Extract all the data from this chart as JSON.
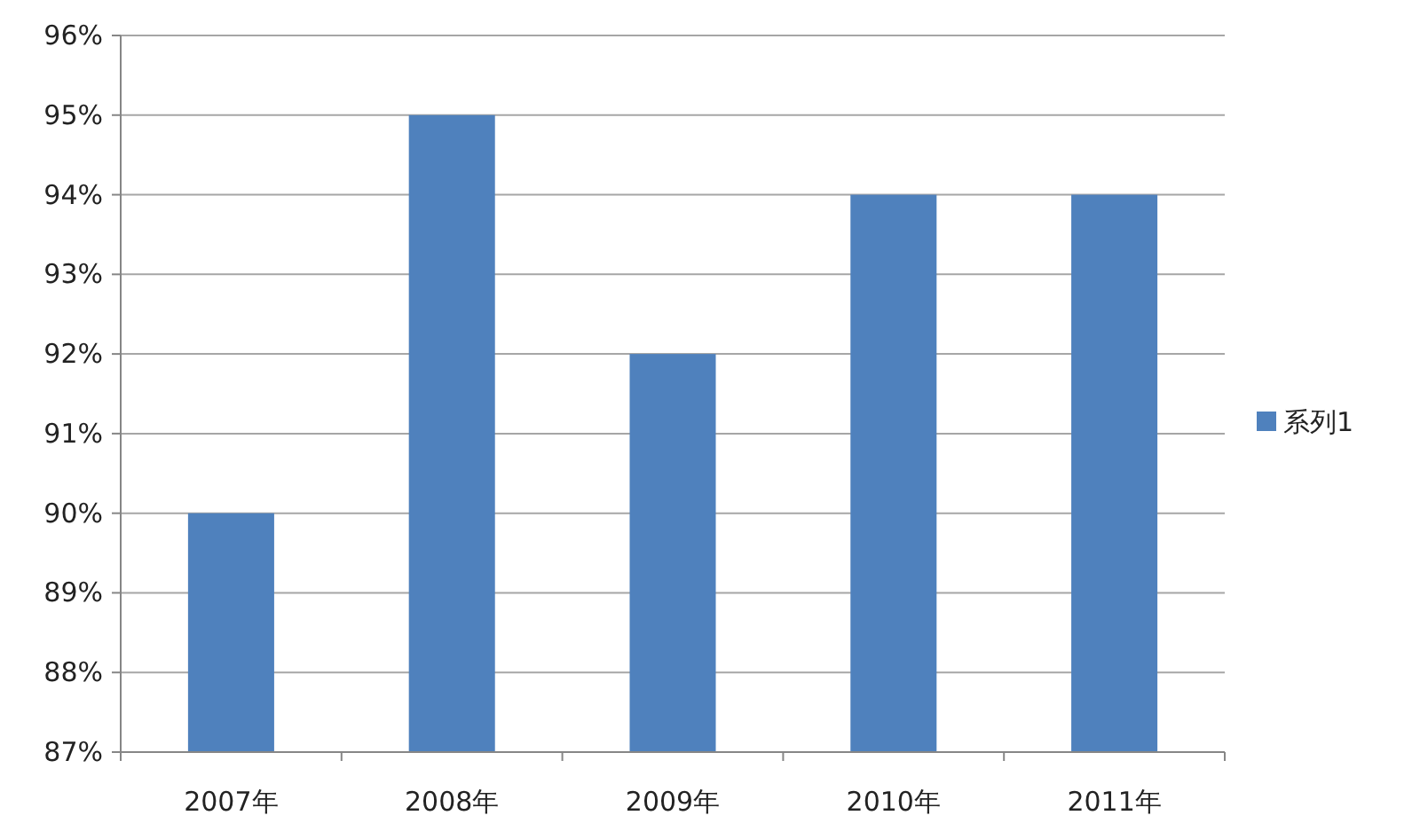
{
  "chart_data": {
    "type": "bar",
    "categories": [
      "2007年",
      "2008年",
      "2009年",
      "2010年",
      "2011年"
    ],
    "series": [
      {
        "name": "系列1",
        "color": "#4f81bd",
        "values": [
          90,
          95,
          92,
          94,
          94
        ]
      }
    ],
    "ylim": [
      87,
      96
    ],
    "yticks": [
      {
        "value": 87,
        "label": "87%"
      },
      {
        "value": 88,
        "label": "88%"
      },
      {
        "value": 89,
        "label": "89%"
      },
      {
        "value": 90,
        "label": "90%"
      },
      {
        "value": 91,
        "label": "91%"
      },
      {
        "value": 92,
        "label": "92%"
      },
      {
        "value": 93,
        "label": "93%"
      },
      {
        "value": 94,
        "label": "94%"
      },
      {
        "value": 95,
        "label": "95%"
      },
      {
        "value": 96,
        "label": "96%"
      }
    ],
    "grid": "y",
    "legend": "right"
  }
}
